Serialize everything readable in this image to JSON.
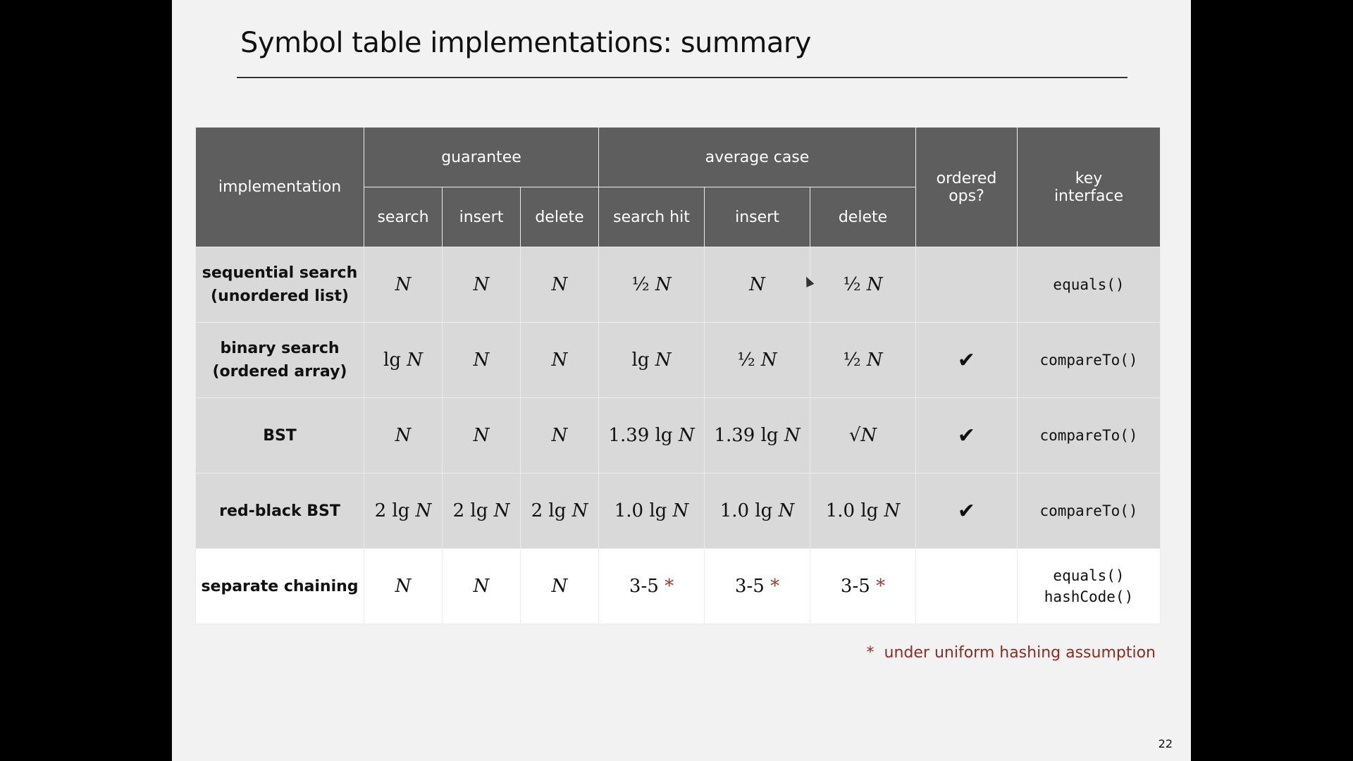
{
  "slide": {
    "title": "Symbol table implementations:  summary",
    "page_number": "22",
    "footnote": "under uniform hashing assumption",
    "footnote_marker": "*"
  },
  "table": {
    "headers": {
      "implementation": "implementation",
      "guarantee": "guarantee",
      "average_case": "average case",
      "ordered_ops": [
        "ordered",
        "ops?"
      ],
      "key_interface": [
        "key",
        "interface"
      ],
      "guarantee_cols": [
        "search",
        "insert",
        "delete"
      ],
      "average_cols": [
        "search hit",
        "insert",
        "delete"
      ]
    },
    "rows": [
      {
        "name": [
          "sequential search",
          "(unordered list)"
        ],
        "guarantee": [
          {
            "pre": "",
            "var": "N"
          },
          {
            "pre": "",
            "var": "N"
          },
          {
            "pre": "",
            "var": "N"
          }
        ],
        "average": [
          {
            "pre": "½ ",
            "var": "N"
          },
          {
            "pre": "",
            "var": "N"
          },
          {
            "pre": "½ ",
            "var": "N"
          }
        ],
        "ordered": "",
        "key": [
          "equals()"
        ]
      },
      {
        "name": [
          "binary search",
          "(ordered array)"
        ],
        "guarantee": [
          {
            "pre": "lg ",
            "var": "N"
          },
          {
            "pre": "",
            "var": "N"
          },
          {
            "pre": "",
            "var": "N"
          }
        ],
        "average": [
          {
            "pre": "lg ",
            "var": "N"
          },
          {
            "pre": "½ ",
            "var": "N"
          },
          {
            "pre": "½ ",
            "var": "N"
          }
        ],
        "ordered": "✔",
        "key": [
          "compareTo()"
        ]
      },
      {
        "name": [
          "BST"
        ],
        "guarantee": [
          {
            "pre": "",
            "var": "N"
          },
          {
            "pre": "",
            "var": "N"
          },
          {
            "pre": "",
            "var": "N"
          }
        ],
        "average": [
          {
            "pre": "1.39 lg ",
            "var": "N"
          },
          {
            "pre": "1.39 lg ",
            "var": "N"
          },
          {
            "pre": "√",
            "var": "N"
          }
        ],
        "ordered": "✔",
        "key": [
          "compareTo()"
        ]
      },
      {
        "name": [
          "red-black BST"
        ],
        "guarantee": [
          {
            "pre": "2 lg ",
            "var": "N"
          },
          {
            "pre": "2 lg ",
            "var": "N"
          },
          {
            "pre": "2 lg ",
            "var": "N"
          }
        ],
        "average": [
          {
            "pre": "1.0 lg ",
            "var": "N"
          },
          {
            "pre": "1.0 lg ",
            "var": "N"
          },
          {
            "pre": "1.0 lg ",
            "var": "N"
          }
        ],
        "ordered": "✔",
        "key": [
          "compareTo()"
        ]
      },
      {
        "name": [
          "separate chaining"
        ],
        "guarantee": [
          {
            "pre": "",
            "var": "N"
          },
          {
            "pre": "",
            "var": "N"
          },
          {
            "pre": "",
            "var": "N"
          }
        ],
        "average": [
          {
            "pre": "3-5 ",
            "var": "",
            "star": "*"
          },
          {
            "pre": "3-5 ",
            "var": "",
            "star": "*"
          },
          {
            "pre": "3-5 ",
            "var": "",
            "star": "*"
          }
        ],
        "ordered": "",
        "key": [
          "equals()",
          "hashCode()"
        ]
      }
    ]
  }
}
